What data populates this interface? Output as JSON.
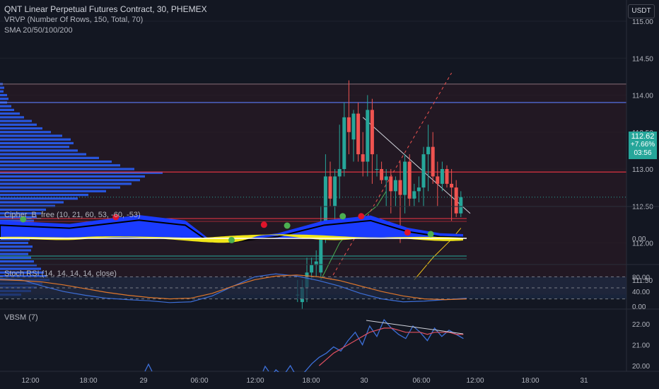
{
  "header": {
    "title": "QNT Linear Perpetual Futures Contract, 30, PHEMEX",
    "vrvp": "VRVP (Number Of Rows, 150, Total, 70)",
    "sma": "SMA 20/50/100/200",
    "currency": "USDT"
  },
  "price_tag": {
    "price": "112.62",
    "change": "+7.66%",
    "countdown": "03:56"
  },
  "colors": {
    "background": "#131722",
    "up": "#26a69a",
    "down": "#ef5350",
    "volume_profile": "#2962ff",
    "resistance_line": "#5b7cfa",
    "poc_line": "#f23645",
    "cipher_wave": "#1a3bff",
    "stoch_k": "#3d6fd8",
    "stoch_d": "#e0772b",
    "vbsm": "#3d6fd8"
  },
  "chart_data": [
    {
      "type": "candlestick",
      "title": "QNT Linear Perpetual Futures Contract, 30, PHEMEX",
      "y_ticks": [
        111.5,
        112.0,
        112.5,
        113.0,
        113.5,
        114.0,
        114.5,
        115.0
      ],
      "y_tick_labels": [
        "111.50",
        "112.00",
        "112.50",
        "113.00",
        "113.50",
        "114.00",
        "114.50",
        "115.00"
      ],
      "ylim": [
        111.2,
        115.2
      ],
      "x_tick_labels": [
        "12:00",
        "18:00",
        "29",
        "06:00",
        "12:00",
        "18:00",
        "30",
        "06:00",
        "12:00",
        "18:00",
        "31"
      ],
      "horizontal_lines": [
        114.15,
        113.9,
        112.96
      ],
      "candles": [
        {
          "t": "29 16:30",
          "o": 111.3,
          "h": 111.5,
          "l": 111.2,
          "c": 111.3
        },
        {
          "t": "29 17:00",
          "o": 111.2,
          "h": 111.5,
          "l": 111.1,
          "c": 111.4
        },
        {
          "t": "29 17:30",
          "o": 111.4,
          "h": 111.8,
          "l": 111.2,
          "c": 111.6
        },
        {
          "t": "29 18:00",
          "o": 111.6,
          "h": 111.8,
          "l": 111.5,
          "c": 111.7
        },
        {
          "t": "29 18:30",
          "o": 111.7,
          "h": 111.9,
          "l": 111.55,
          "c": 111.75
        },
        {
          "t": "29 19:00",
          "o": 111.6,
          "h": 112.5,
          "l": 111.5,
          "c": 112.2
        },
        {
          "t": "29 19:30",
          "o": 112.2,
          "h": 113.2,
          "l": 112.0,
          "c": 112.9
        },
        {
          "t": "29 20:00",
          "o": 112.9,
          "h": 113.1,
          "l": 112.5,
          "c": 112.6
        },
        {
          "t": "29 20:30",
          "o": 112.5,
          "h": 113.0,
          "l": 112.3,
          "c": 112.9
        },
        {
          "t": "29 21:00",
          "o": 112.9,
          "h": 113.6,
          "l": 112.6,
          "c": 113.0
        },
        {
          "t": "29 21:30",
          "o": 113.0,
          "h": 113.9,
          "l": 112.9,
          "c": 113.7
        },
        {
          "t": "29 22:00",
          "o": 113.7,
          "h": 114.2,
          "l": 113.2,
          "c": 113.5
        },
        {
          "t": "29 22:30",
          "o": 113.4,
          "h": 113.8,
          "l": 113.1,
          "c": 113.75
        },
        {
          "t": "29 23:00",
          "o": 113.75,
          "h": 113.9,
          "l": 113.1,
          "c": 113.2
        },
        {
          "t": "29 23:30",
          "o": 113.2,
          "h": 113.5,
          "l": 112.9,
          "c": 113.1
        },
        {
          "t": "30 00:00",
          "o": 113.1,
          "h": 114.0,
          "l": 112.9,
          "c": 113.8
        },
        {
          "t": "30 00:30",
          "o": 113.8,
          "h": 113.95,
          "l": 112.8,
          "c": 113.2
        },
        {
          "t": "30 01:00",
          "o": 113.0,
          "h": 113.2,
          "l": 112.9,
          "c": 113.0
        },
        {
          "t": "30 01:30",
          "o": 113.0,
          "h": 113.1,
          "l": 112.8,
          "c": 112.85
        },
        {
          "t": "30 02:00",
          "o": 112.85,
          "h": 113.0,
          "l": 112.5,
          "c": 112.9
        },
        {
          "t": "30 02:30",
          "o": 112.9,
          "h": 113.0,
          "l": 112.4,
          "c": 112.7
        },
        {
          "t": "30 03:00",
          "o": 112.7,
          "h": 112.9,
          "l": 112.5,
          "c": 112.85
        },
        {
          "t": "30 03:30",
          "o": 112.85,
          "h": 113.1,
          "l": 112.0,
          "c": 112.65
        },
        {
          "t": "30 04:00",
          "o": 112.65,
          "h": 113.2,
          "l": 112.4,
          "c": 113.1
        },
        {
          "t": "30 04:30",
          "o": 113.1,
          "h": 113.2,
          "l": 112.5,
          "c": 112.6
        },
        {
          "t": "30 05:00",
          "o": 112.6,
          "h": 112.8,
          "l": 112.5,
          "c": 112.7
        },
        {
          "t": "30 05:30",
          "o": 112.7,
          "h": 112.9,
          "l": 112.55,
          "c": 112.75
        },
        {
          "t": "30 06:00",
          "o": 112.75,
          "h": 113.3,
          "l": 112.5,
          "c": 113.2
        },
        {
          "t": "30 06:30",
          "o": 113.2,
          "h": 113.6,
          "l": 112.7,
          "c": 113.3
        },
        {
          "t": "30 07:00",
          "o": 113.3,
          "h": 113.5,
          "l": 112.8,
          "c": 112.9
        },
        {
          "t": "30 07:30",
          "o": 112.9,
          "h": 113.1,
          "l": 112.5,
          "c": 112.8
        },
        {
          "t": "30 08:00",
          "o": 112.8,
          "h": 113.1,
          "l": 112.7,
          "c": 113.0
        },
        {
          "t": "30 08:30",
          "o": 113.0,
          "h": 113.05,
          "l": 112.75,
          "c": 112.8
        },
        {
          "t": "30 09:00",
          "o": 112.8,
          "h": 113.0,
          "l": 112.3,
          "c": 112.75
        },
        {
          "t": "30 09:30",
          "o": 112.75,
          "h": 112.85,
          "l": 112.35,
          "c": 112.4
        },
        {
          "t": "30 10:00",
          "o": 112.4,
          "h": 112.7,
          "l": 112.35,
          "c": 112.62
        }
      ],
      "sma": [
        {
          "name": "SMA 20",
          "color": "#4caf50",
          "points": [
            [
              "29 19:00",
              111.5
            ],
            [
              "29 21:00",
              112.0
            ],
            [
              "29 23:00",
              112.3
            ],
            [
              "30 01:00",
              112.5
            ],
            [
              "30 02:00",
              112.7
            ]
          ]
        },
        {
          "name": "SMA 50",
          "color": "#f0c419",
          "points": [
            [
              "30 05:00",
              111.5
            ],
            [
              "30 07:00",
              111.8
            ],
            [
              "30 09:00",
              112.05
            ],
            [
              "30 10:00",
              112.2
            ]
          ]
        }
      ],
      "trend_lines": [
        {
          "from": [
            "29 23:30",
            113.7
          ],
          "to": [
            "30 11:00",
            112.4
          ],
          "color": "#d1d4dc",
          "dashed": false
        },
        {
          "from": [
            "29 20:00",
            111.5
          ],
          "to": [
            "30 09:00",
            114.3
          ],
          "color": "#ef5350",
          "dashed": true
        }
      ],
      "volume_profile": [
        {
          "price": 114.15,
          "volume": 4
        },
        {
          "price": 114.1,
          "volume": 6
        },
        {
          "price": 114.05,
          "volume": 5
        },
        {
          "price": 114.0,
          "volume": 10
        },
        {
          "price": 113.95,
          "volume": 12
        },
        {
          "price": 113.9,
          "volume": 10
        },
        {
          "price": 113.85,
          "volume": 16
        },
        {
          "price": 113.8,
          "volume": 20
        },
        {
          "price": 113.75,
          "volume": 28
        },
        {
          "price": 113.7,
          "volume": 34
        },
        {
          "price": 113.65,
          "volume": 45
        },
        {
          "price": 113.6,
          "volume": 52
        },
        {
          "price": 113.55,
          "volume": 60
        },
        {
          "price": 113.5,
          "volume": 72
        },
        {
          "price": 113.45,
          "volume": 88
        },
        {
          "price": 113.4,
          "volume": 100
        },
        {
          "price": 113.35,
          "volume": 104
        },
        {
          "price": 113.3,
          "volume": 98
        },
        {
          "price": 113.25,
          "volume": 110
        },
        {
          "price": 113.2,
          "volume": 122
        },
        {
          "price": 113.15,
          "volume": 140
        },
        {
          "price": 113.1,
          "volume": 158
        },
        {
          "price": 113.05,
          "volume": 170
        },
        {
          "price": 113.0,
          "volume": 190
        },
        {
          "price": 112.95,
          "volume": 230
        },
        {
          "price": 112.9,
          "volume": 205
        },
        {
          "price": 112.85,
          "volume": 198
        },
        {
          "price": 112.8,
          "volume": 186
        },
        {
          "price": 112.75,
          "volume": 170
        },
        {
          "price": 112.7,
          "volume": 150
        },
        {
          "price": 112.65,
          "volume": 125
        },
        {
          "price": 112.6,
          "volume": 110
        },
        {
          "price": 112.55,
          "volume": 90
        },
        {
          "price": 112.5,
          "volume": 78
        },
        {
          "price": 112.45,
          "volume": 65
        },
        {
          "price": 112.4,
          "volume": 58
        },
        {
          "price": 112.35,
          "volume": 52
        },
        {
          "price": 112.3,
          "volume": 48
        },
        {
          "price": 112.25,
          "volume": 46
        },
        {
          "price": 112.2,
          "volume": 42
        },
        {
          "price": 112.15,
          "volume": 40
        },
        {
          "price": 112.1,
          "volume": 44
        },
        {
          "price": 112.05,
          "volume": 42
        },
        {
          "price": 112.0,
          "volume": 40
        },
        {
          "price": 111.95,
          "volume": 46
        },
        {
          "price": 111.9,
          "volume": 44
        },
        {
          "price": 111.85,
          "volume": 40
        },
        {
          "price": 111.8,
          "volume": 44
        },
        {
          "price": 111.75,
          "volume": 48
        },
        {
          "price": 111.7,
          "volume": 52
        },
        {
          "price": 111.65,
          "volume": 58
        },
        {
          "price": 111.6,
          "volume": 62
        },
        {
          "price": 111.55,
          "volume": 66
        },
        {
          "price": 111.5,
          "volume": 70
        },
        {
          "price": 111.45,
          "volume": 60
        },
        {
          "price": 111.4,
          "volume": 52
        },
        {
          "price": 111.35,
          "volume": 44
        },
        {
          "price": 111.3,
          "volume": 30
        }
      ]
    },
    {
      "type": "area",
      "title": "Cipher_B_free (10, 21, 60, 53, -60, -53)",
      "y_tick_labels": [
        "0.00"
      ],
      "ylim": [
        -60,
        60
      ],
      "wave": [
        [
          0,
          42
        ],
        [
          0.15,
          34
        ],
        [
          0.3,
          55
        ],
        [
          0.4,
          42
        ],
        [
          0.45,
          0
        ],
        [
          0.5,
          -2
        ],
        [
          0.6,
          12
        ],
        [
          0.7,
          42
        ],
        [
          0.8,
          54
        ],
        [
          0.88,
          25
        ],
        [
          0.95,
          12
        ],
        [
          1,
          10
        ]
      ],
      "signals": [
        {
          "at": 0.05,
          "value": 45,
          "kind": "green"
        },
        {
          "at": 0.25,
          "value": 50,
          "kind": "red"
        },
        {
          "at": 0.5,
          "value": -4,
          "kind": "green"
        },
        {
          "at": 0.57,
          "value": 32,
          "kind": "red"
        },
        {
          "at": 0.62,
          "value": 30,
          "kind": "green"
        },
        {
          "at": 0.74,
          "value": 52,
          "kind": "green"
        },
        {
          "at": 0.78,
          "value": 52,
          "kind": "red"
        },
        {
          "at": 0.88,
          "value": 14,
          "kind": "red"
        },
        {
          "at": 0.93,
          "value": 10,
          "kind": "green"
        }
      ]
    },
    {
      "type": "line",
      "title": "Stoch RSI (14, 14, 14, 14, close)",
      "y_ticks": [
        0,
        20,
        40,
        60,
        80
      ],
      "y_tick_labels": [
        "0.00",
        "40.00",
        "80.00"
      ],
      "ylim": [
        0,
        100
      ],
      "series": [
        {
          "name": "K",
          "values": [
            75,
            72,
            55,
            40,
            30,
            22,
            18,
            15,
            10,
            12,
            28,
            55,
            80,
            88,
            82,
            70,
            55,
            35,
            20,
            12,
            14,
            18,
            22
          ]
        },
        {
          "name": "D",
          "values": [
            72,
            70,
            66,
            58,
            48,
            38,
            30,
            24,
            20,
            22,
            35,
            55,
            72,
            82,
            85,
            80,
            70,
            55,
            40,
            28,
            20,
            18,
            20
          ]
        }
      ]
    },
    {
      "type": "line",
      "title": "VBSM (7)",
      "y_ticks": [
        20,
        21,
        22
      ],
      "y_tick_labels": [
        "20.00",
        "21.00",
        "22.00"
      ],
      "ylim": [
        19.6,
        22.6
      ],
      "series": [
        {
          "name": "VBSM",
          "values": [
            19.3,
            19.8,
            19.5,
            20.0,
            19.4,
            19.7,
            20.1,
            20.4,
            20.6,
            20.9,
            20.7,
            21.2,
            21.6,
            21.0,
            21.9,
            21.4,
            22.2,
            21.8,
            21.5,
            21.3,
            21.9,
            21.6,
            21.2,
            21.8,
            21.4,
            21.7,
            21.5,
            21.3
          ]
        },
        {
          "name": "Signal",
          "values": [
            null,
            null,
            null,
            null,
            null,
            null,
            null,
            20.0,
            20.3,
            20.6,
            20.8,
            21.0,
            21.2,
            21.4,
            21.6,
            21.7,
            21.8,
            21.8,
            21.7,
            21.6,
            21.6,
            21.6,
            21.5,
            21.6,
            21.6,
            21.6,
            21.5,
            21.5
          ]
        }
      ]
    }
  ]
}
